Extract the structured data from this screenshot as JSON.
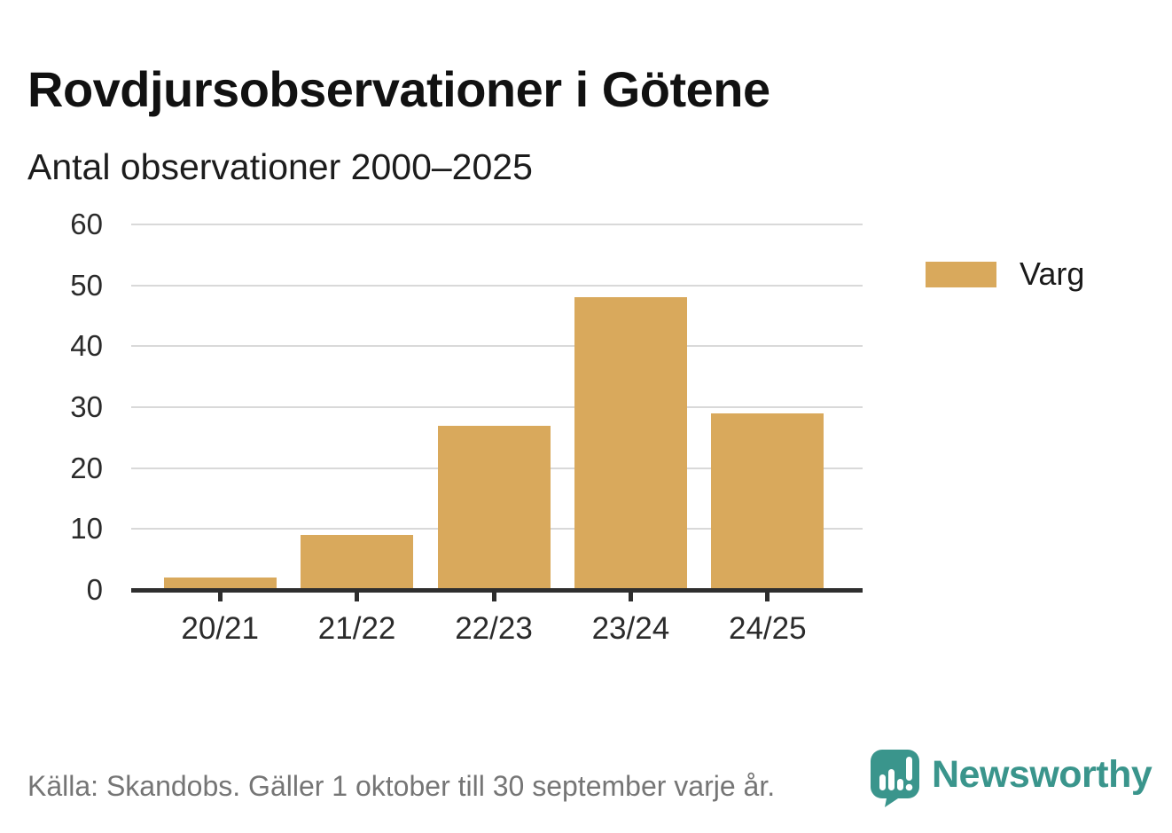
{
  "page": {
    "title": "Rovdjursobservationer i Götene",
    "subtitle": "Antal observationer 2000–2025"
  },
  "chart_data": {
    "type": "bar",
    "title": "Rovdjursobservationer i Götene",
    "subtitle": "Antal observationer 2000–2025",
    "categories": [
      "20/21",
      "21/22",
      "22/23",
      "23/24",
      "24/25"
    ],
    "series": [
      {
        "name": "Varg",
        "color": "#d9a95c",
        "values": [
          2,
          9,
          27,
          48,
          29
        ]
      }
    ],
    "xlabel": "",
    "ylabel": "",
    "ylim": [
      0,
      60
    ],
    "yticks": [
      0,
      10,
      20,
      30,
      40,
      50,
      60
    ],
    "grid": true,
    "legend_position": "right"
  },
  "footer": {
    "source": "Källa: Skandobs. Gäller 1 oktober till 30 september varje år.",
    "brand": "Newsworthy"
  },
  "icons": {
    "logo": "newsworthy-speech-bubble-chart-icon"
  },
  "colors": {
    "bar": "#d9a95c",
    "axis": "#2e2e2e",
    "gridline": "#d9d9d9",
    "brand_teal": "#3a958c",
    "footer_text": "#757575"
  }
}
